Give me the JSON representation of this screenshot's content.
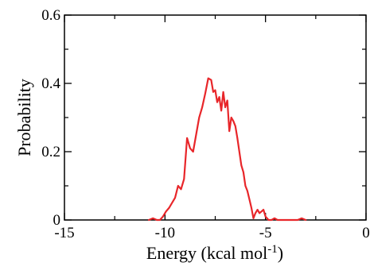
{
  "chart_data": {
    "type": "line",
    "xlabel_main": "Energy (kcal mol",
    "xlabel_sup": "-1",
    "xlabel_tail": ")",
    "ylabel": "Probability",
    "xlim": [
      -15,
      0
    ],
    "ylim": [
      0,
      0.6
    ],
    "xticks": [
      -15,
      -10,
      -5,
      0
    ],
    "xtick_labels": [
      "-15",
      "-10",
      "-5",
      "0"
    ],
    "yticks": [
      0,
      0.2,
      0.4,
      0.6
    ],
    "ytick_labels": [
      "0",
      "0.2",
      "0.4",
      "0.6"
    ],
    "grid": false,
    "series": [
      {
        "color": "#e8262a",
        "x": [
          -10.8,
          -10.6,
          -10.4,
          -10.25,
          -10.1,
          -9.95,
          -9.8,
          -9.65,
          -9.5,
          -9.35,
          -9.2,
          -9.05,
          -8.9,
          -8.75,
          -8.6,
          -8.45,
          -8.3,
          -8.15,
          -8.0,
          -7.85,
          -7.7,
          -7.6,
          -7.5,
          -7.4,
          -7.3,
          -7.2,
          -7.1,
          -7.0,
          -6.9,
          -6.8,
          -6.7,
          -6.6,
          -6.5,
          -6.4,
          -6.3,
          -6.2,
          -6.1,
          -6.0,
          -5.9,
          -5.8,
          -5.7,
          -5.6,
          -5.5,
          -5.4,
          -5.3,
          -5.2,
          -5.1,
          -5.0,
          -4.85,
          -4.7,
          -4.55,
          -4.4,
          -4.2,
          -4.0,
          -3.8,
          -3.6,
          -3.4,
          -3.2,
          -3.0
        ],
        "y": [
          0.0,
          0.005,
          0.0,
          0.0,
          0.01,
          0.025,
          0.035,
          0.05,
          0.065,
          0.1,
          0.09,
          0.12,
          0.24,
          0.21,
          0.2,
          0.25,
          0.3,
          0.33,
          0.37,
          0.415,
          0.41,
          0.375,
          0.38,
          0.345,
          0.36,
          0.32,
          0.375,
          0.33,
          0.35,
          0.26,
          0.3,
          0.29,
          0.275,
          0.24,
          0.2,
          0.16,
          0.14,
          0.1,
          0.085,
          0.06,
          0.035,
          0.005,
          0.02,
          0.03,
          0.02,
          0.025,
          0.03,
          0.01,
          0.0,
          0.0,
          0.005,
          0.0,
          0.0,
          0.0,
          0.0,
          0.0,
          0.0,
          0.005,
          0.0
        ]
      }
    ]
  }
}
